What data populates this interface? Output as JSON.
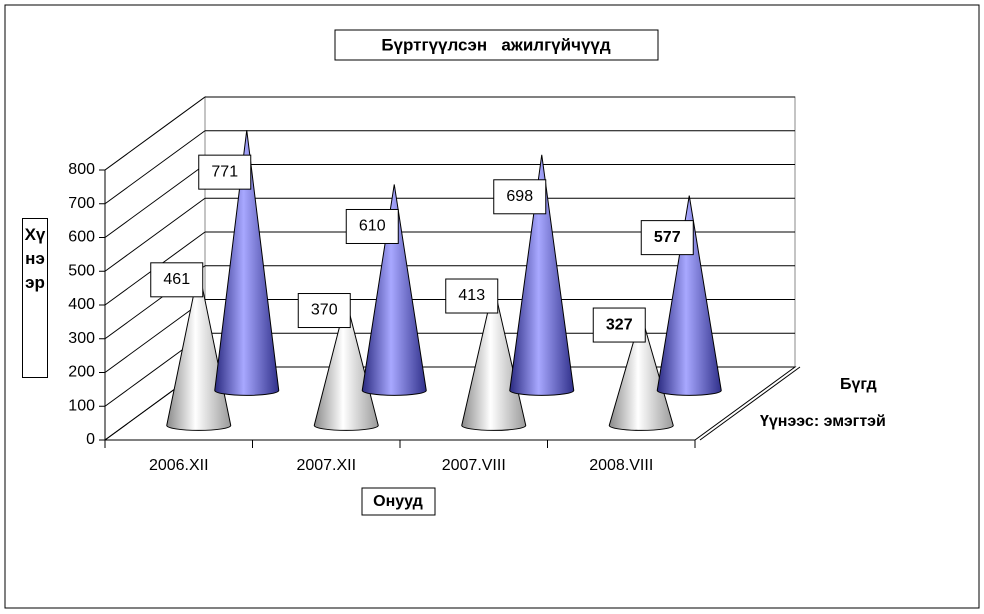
{
  "chart_data": {
    "type": "cone",
    "title": "Бүртгүүлсэн   ажилгүйчүүд",
    "x_label": "Онууд",
    "y_label": "Хүнээр",
    "categories": [
      "2006.XII",
      "2007.XII",
      "2007.VIII",
      "2008.VIII"
    ],
    "series": [
      {
        "name": "Үүнээс: эмэгтэй",
        "color": "#c8c8c8",
        "values": [
          461,
          370,
          413,
          327
        ]
      },
      {
        "name": "Бүгд",
        "color": "#5a5ac8",
        "values": [
          771,
          610,
          698,
          577
        ]
      }
    ],
    "ylim": [
      0,
      800
    ],
    "yticks": [
      0,
      100,
      200,
      300,
      400,
      500,
      600,
      700,
      800
    ],
    "grid": true
  }
}
